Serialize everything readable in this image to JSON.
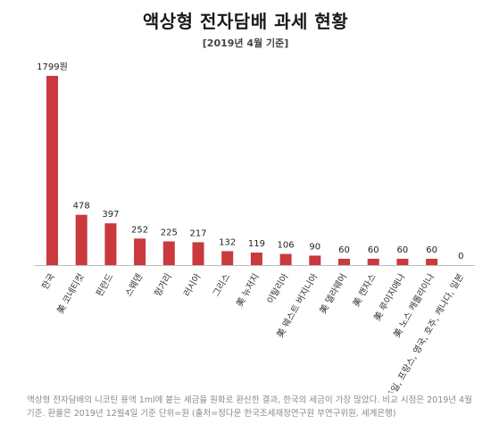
{
  "chart_data": {
    "type": "bar",
    "title": "액상형 전자담배 과세 현황",
    "subtitle": "[2019년 4월 기준]",
    "unit_label": "1799원",
    "categories": [
      "한국",
      "美 코네티컷",
      "핀란드",
      "스웨덴",
      "헝가리",
      "러시아",
      "그리스",
      "美 뉴저지",
      "이탈리아",
      "美 웨스트 버지니아",
      "美 델라웨어",
      "美 캔자스",
      "美 루이지애나",
      "美 노스 캐롤라이나",
      "독일, 프랑스, 영국, 호주, 캐나다, 일본"
    ],
    "values": [
      1799,
      478,
      397,
      252,
      225,
      217,
      132,
      119,
      106,
      90,
      60,
      60,
      60,
      60,
      0
    ],
    "value_labels": [
      "1799원",
      "478",
      "397",
      "252",
      "225",
      "217",
      "132",
      "119",
      "106",
      "90",
      "60",
      "60",
      "60",
      "60",
      "0"
    ],
    "ylim": [
      0,
      1850
    ],
    "bar_color": "#c9393e",
    "grid": false
  },
  "footnote": "액상형 전자담배의 니코틴 용액 1ml에 붙는 세금을 원화로 환산한 결과, 한국의 세금이 가장 많았다. 비교 시점은 2019년 4월 기준. 환율은 2019년 12월4일 기준 단위=원 (출처=정다운 한국조세재정연구원 부연구위원, 세계은행)"
}
